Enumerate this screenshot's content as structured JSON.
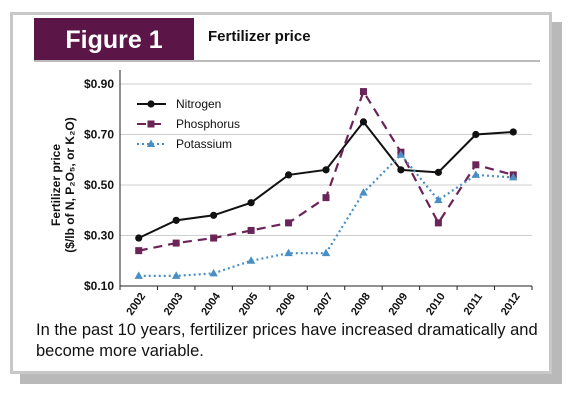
{
  "figure_label": "Figure 1",
  "figure_title": "Fertilizer price",
  "caption": "In the past 10 years, fertilizer prices have increased dramatically and become more variable.",
  "colors": {
    "badge": "#5b1547",
    "nitrogen": "#111111",
    "phosphorus": "#6b2458",
    "potassium": "#4a8fc4"
  },
  "chart_data": {
    "type": "line",
    "ylabel_line1": "Fertilizer price",
    "ylabel_line2": "($/lb of N, P₂O₅, or K₂O)",
    "xlabel": "",
    "categories": [
      "2002",
      "2003",
      "2004",
      "2005",
      "2006",
      "2007",
      "2008",
      "2009",
      "2010",
      "2011",
      "2012"
    ],
    "ylim": [
      0.1,
      0.9
    ],
    "yticks": [
      0.1,
      0.3,
      0.5,
      0.7,
      0.9
    ],
    "ytick_labels": [
      "$0.10",
      "$0.30",
      "$0.50",
      "$0.70",
      "$0.90"
    ],
    "grid": "horizontal",
    "legend_position": "top-left",
    "series": [
      {
        "name": "Nitrogen",
        "marker": "circle",
        "dash": "solid",
        "values": [
          0.29,
          0.36,
          0.38,
          0.43,
          0.54,
          0.56,
          0.75,
          0.56,
          0.55,
          0.7,
          0.71
        ]
      },
      {
        "name": "Phosphorus",
        "marker": "square",
        "dash": "dashed",
        "values": [
          0.24,
          0.27,
          0.29,
          0.32,
          0.35,
          0.45,
          0.87,
          0.63,
          0.35,
          0.58,
          0.54
        ]
      },
      {
        "name": "Potassium",
        "marker": "triangle",
        "dash": "dotted",
        "values": [
          0.14,
          0.14,
          0.15,
          0.2,
          0.23,
          0.23,
          0.47,
          0.62,
          0.44,
          0.54,
          0.53
        ]
      }
    ]
  }
}
